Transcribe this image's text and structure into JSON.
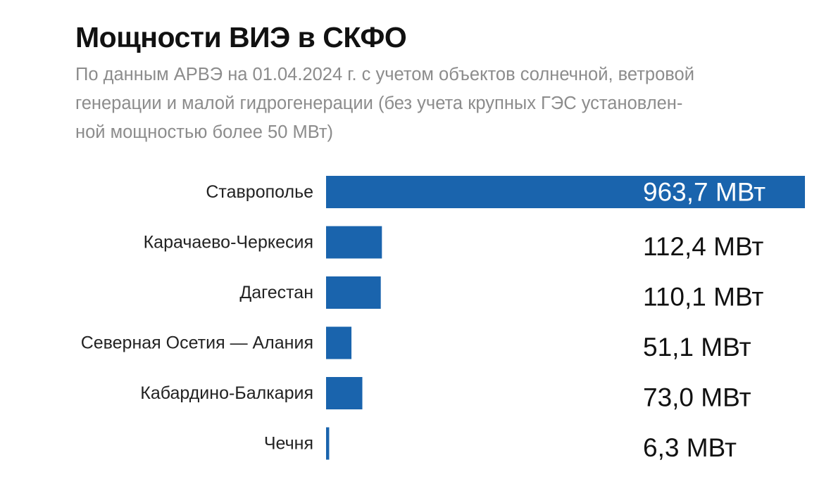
{
  "title": "Мощности ВИЭ в СКФО",
  "subtitle_lines": [
    "По данным АРВЭ на 01.04.2024 г. с учетом объектов солнечной, ветровой",
    "генерации и малой гидрогенерации (без учета крупных ГЭС установлен-",
    "ной мощностью более 50 МВт)"
  ],
  "colors": {
    "bar": "#1a64ad",
    "text": "#111111",
    "subtitle": "#8c8c8c"
  },
  "chart_data": {
    "type": "bar",
    "orientation": "horizontal",
    "categories": [
      "Ставрополье",
      "Карачаево-Черкесия",
      "Дагестан",
      "Северная Осетия — Алания",
      "Кабардино-Балкария",
      "Чечня"
    ],
    "values": [
      963.7,
      112.4,
      110.1,
      51.1,
      73.0,
      6.3
    ],
    "value_labels": [
      "963,7 МВт",
      "112,4 МВт",
      "110,1 МВт",
      "51,1 МВт",
      "73,0 МВт",
      "6,3 МВт"
    ],
    "title": "Мощности ВИЭ в СКФО",
    "xlim": [
      0,
      963.7
    ],
    "grid": false,
    "legend": "none"
  }
}
